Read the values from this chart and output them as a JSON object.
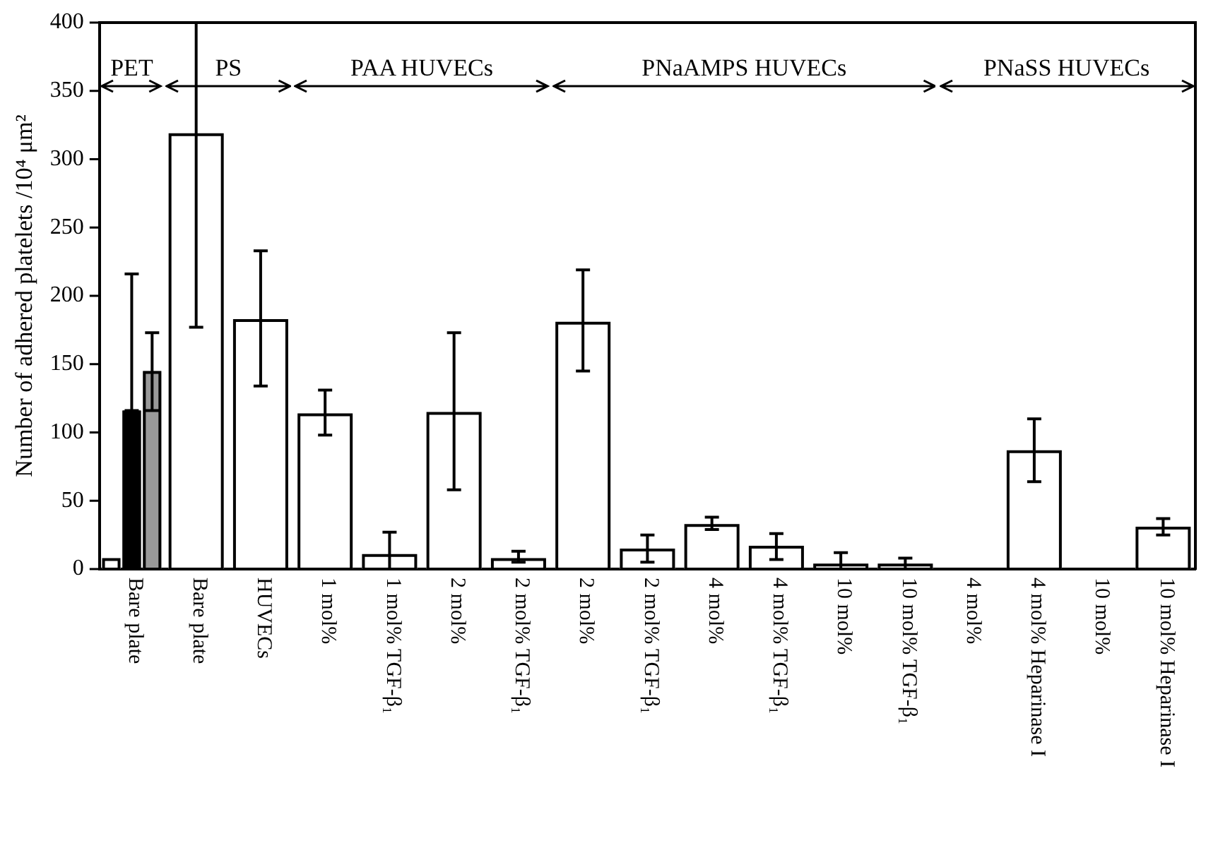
{
  "chart_data": {
    "type": "bar",
    "ylabel": "Number of adhered platelets /10⁴ μm²",
    "categories": [
      "Bare plate",
      "Bare plate",
      "HUVECs",
      "1 mol%",
      "1 mol% TGF-β₁",
      "2 mol%",
      "2 mol% TGF-β₁",
      "2 mol%",
      "2 mol% TGF-β₁",
      "4 mol%",
      "4 mol% TGF-β₁",
      "10 mol%",
      "10 mol% TGF-β₁",
      "4 mol%",
      "4 mol% Heparinase I",
      "10 mol%",
      "10 mol% Heparinase I"
    ],
    "series": [
      {
        "color": "#ffffff",
        "values": [
          8,
          319,
          183,
          114,
          11,
          115,
          8,
          181,
          15,
          33,
          17,
          4,
          4,
          0,
          87,
          0,
          31
        ],
        "errors": [
          null,
          [
            177,
            400
          ],
          [
            134,
            233
          ],
          [
            98,
            131
          ],
          [
            0,
            27
          ],
          [
            58,
            173
          ],
          [
            5,
            13
          ],
          [
            145,
            219
          ],
          [
            5,
            25
          ],
          [
            29,
            38
          ],
          [
            7,
            26
          ],
          [
            0,
            12
          ],
          [
            0,
            8
          ],
          null,
          [
            64,
            110
          ],
          null,
          [
            25,
            37
          ]
        ]
      },
      {
        "color": "#000000",
        "values": [
          116,
          null,
          null,
          null,
          null,
          null,
          null,
          null,
          null,
          null,
          null,
          null,
          null,
          null,
          null,
          null,
          null
        ],
        "errors": [
          [
            116,
            216
          ],
          null,
          null,
          null,
          null,
          null,
          null,
          null,
          null,
          null,
          null,
          null,
          null,
          null,
          null,
          null,
          null
        ]
      },
      {
        "color": "#999999",
        "values": [
          145,
          null,
          null,
          null,
          null,
          null,
          null,
          null,
          null,
          null,
          null,
          null,
          null,
          null,
          null,
          null,
          null
        ],
        "errors": [
          [
            116,
            173
          ],
          null,
          null,
          null,
          null,
          null,
          null,
          null,
          null,
          null,
          null,
          null,
          null,
          null,
          null,
          null,
          null
        ]
      }
    ],
    "ylim": [
      0,
      400
    ],
    "yticks": [
      0,
      50,
      100,
      150,
      200,
      250,
      300,
      350,
      400
    ],
    "annotations": [
      "PET",
      "PS",
      "PAA HUVECs",
      "PNaAMPS HUVECs",
      "PNaSS HUVECs"
    ],
    "legend": false,
    "grid": false
  }
}
